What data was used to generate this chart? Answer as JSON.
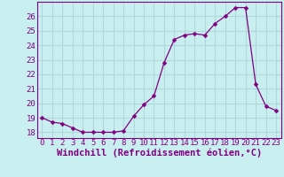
{
  "x": [
    0,
    1,
    2,
    3,
    4,
    5,
    6,
    7,
    8,
    9,
    10,
    11,
    12,
    13,
    14,
    15,
    16,
    17,
    18,
    19,
    20,
    21,
    22,
    23
  ],
  "y": [
    19.0,
    18.7,
    18.6,
    18.3,
    18.0,
    18.0,
    18.0,
    18.0,
    18.1,
    19.1,
    19.9,
    20.5,
    22.8,
    24.4,
    24.7,
    24.8,
    24.7,
    25.5,
    26.0,
    26.6,
    26.6,
    21.3,
    19.8,
    19.5
  ],
  "line_color": "#800080",
  "marker": "D",
  "marker_size": 2.5,
  "bg_color": "#c8eef0",
  "grid_color": "#b0d8da",
  "xlabel": "Windchill (Refroidissement éolien,°C)",
  "xlim": [
    -0.5,
    23.5
  ],
  "ylim": [
    17.6,
    27.0
  ],
  "yticks": [
    18,
    19,
    20,
    21,
    22,
    23,
    24,
    25,
    26
  ],
  "xticks": [
    0,
    1,
    2,
    3,
    4,
    5,
    6,
    7,
    8,
    9,
    10,
    11,
    12,
    13,
    14,
    15,
    16,
    17,
    18,
    19,
    20,
    21,
    22,
    23
  ],
  "tick_label_fontsize": 6.5,
  "xlabel_fontsize": 7.5
}
